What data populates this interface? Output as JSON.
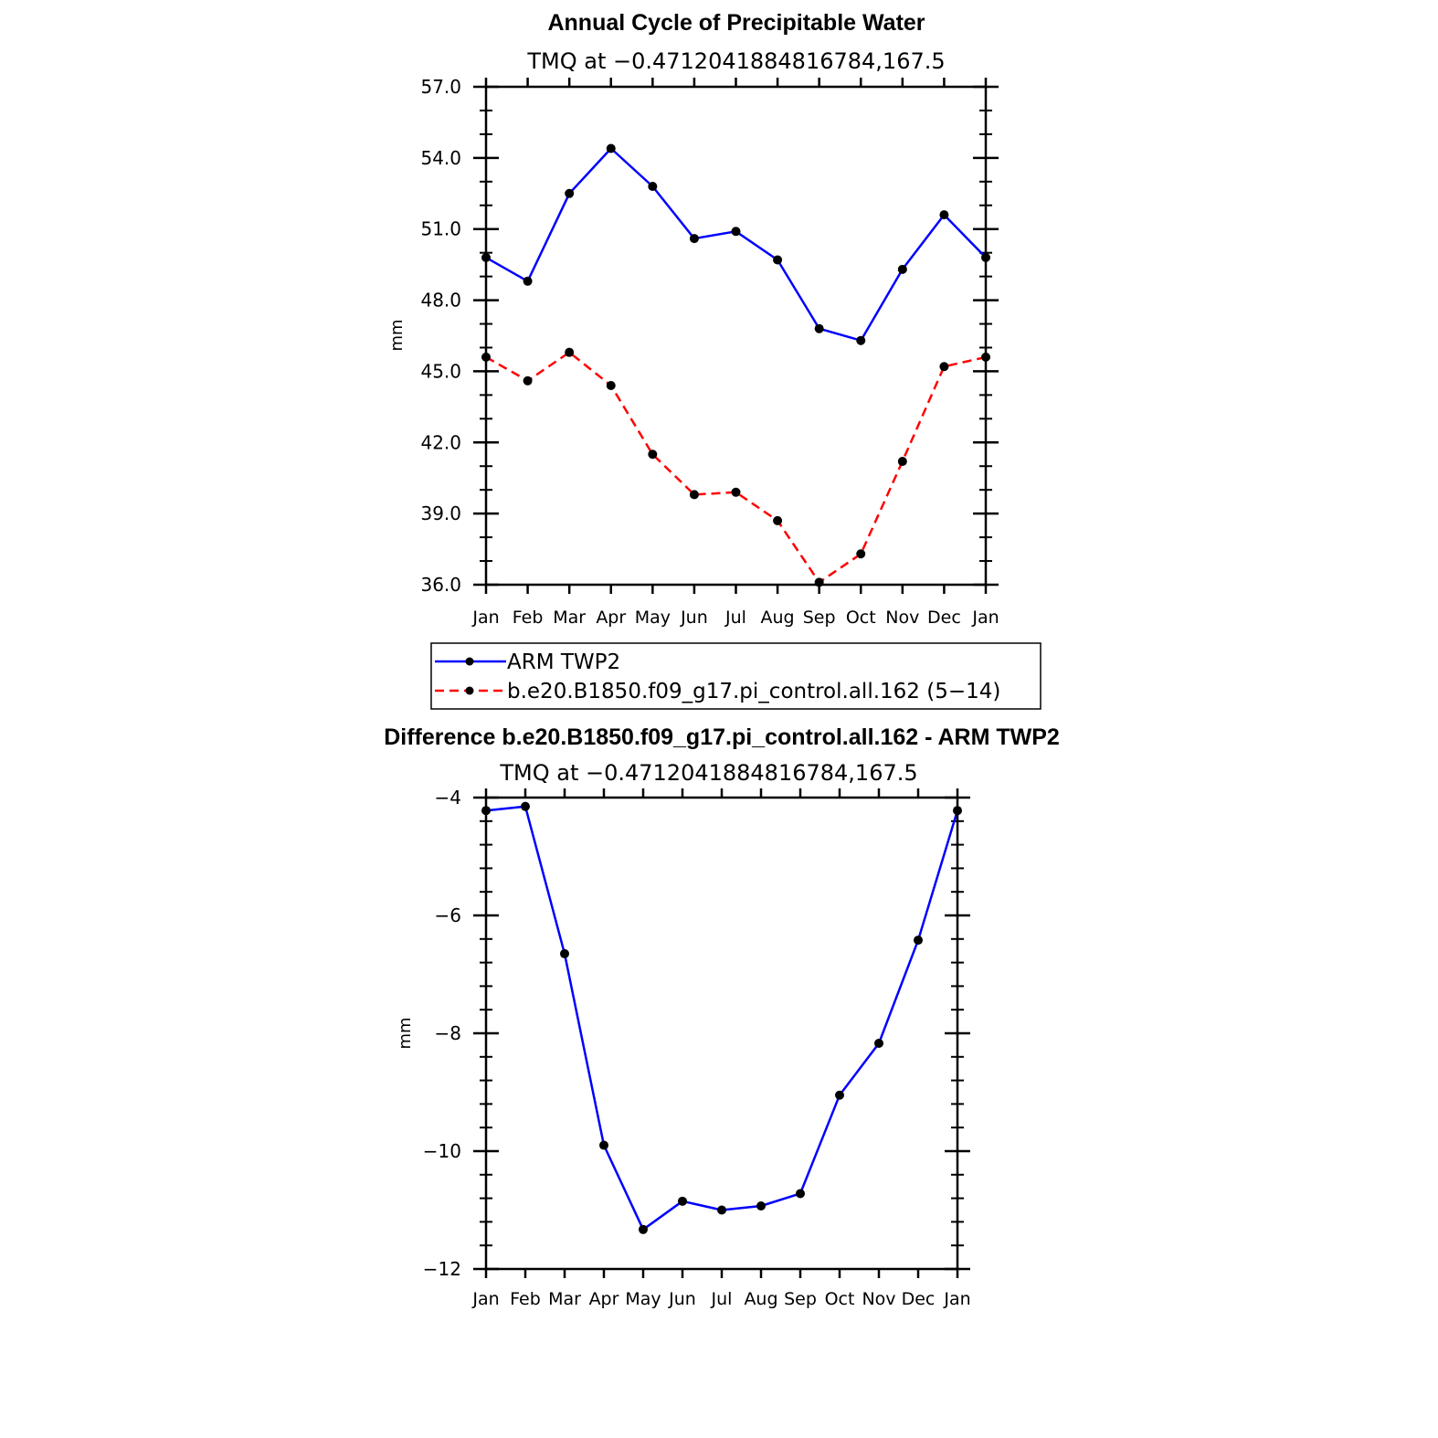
{
  "chart_data": [
    {
      "type": "line",
      "title": "Annual Cycle of Precipitable Water",
      "subtitle": "TMQ at −0.4712041884816784,167.5",
      "ylabel": "mm",
      "xlabel": "",
      "ylim": [
        36.0,
        57.0
      ],
      "yticks": [
        "36.0",
        "39.0",
        "42.0",
        "45.0",
        "48.0",
        "51.0",
        "54.0",
        "57.0"
      ],
      "categories": [
        "Jan",
        "Feb",
        "Mar",
        "Apr",
        "May",
        "Jun",
        "Jul",
        "Aug",
        "Sep",
        "Oct",
        "Nov",
        "Dec",
        "Jan"
      ],
      "grid": false,
      "series": [
        {
          "name": "ARM TWP2",
          "color": "#0000ff",
          "dashed": false,
          "values": [
            49.8,
            48.8,
            52.5,
            54.4,
            52.8,
            50.6,
            50.9,
            49.7,
            46.8,
            46.3,
            49.3,
            51.6,
            49.8
          ]
        },
        {
          "name": "b.e20.B1850.f09_g17.pi_control.all.162 (5−14)",
          "color": "#ff0000",
          "dashed": true,
          "values": [
            45.6,
            44.6,
            45.8,
            44.4,
            41.5,
            39.8,
            39.9,
            38.7,
            36.1,
            37.3,
            41.2,
            45.2,
            45.6
          ]
        }
      ],
      "legend": [
        "ARM TWP2",
        "b.e20.B1850.f09_g17.pi_control.all.162 (5−14)"
      ]
    },
    {
      "type": "line",
      "title": "Difference b.e20.B1850.f09_g17.pi_control.all.162 - ARM TWP2",
      "subtitle": "TMQ at −0.4712041884816784,167.5",
      "ylabel": "mm",
      "xlabel": "",
      "ylim": [
        -12,
        -4
      ],
      "yticks": [
        "−12",
        "−10",
        "−8",
        "−6",
        "−4"
      ],
      "categories": [
        "Jan",
        "Feb",
        "Mar",
        "Apr",
        "May",
        "Jun",
        "Jul",
        "Aug",
        "Sep",
        "Oct",
        "Nov",
        "Dec",
        "Jan"
      ],
      "grid": false,
      "series": [
        {
          "name": "Difference",
          "color": "#0000ff",
          "dashed": false,
          "values": [
            -4.22,
            -4.15,
            -6.65,
            -9.9,
            -11.33,
            -10.85,
            -11.0,
            -10.93,
            -10.72,
            -9.05,
            -8.17,
            -6.42,
            -4.22
          ]
        }
      ]
    }
  ]
}
